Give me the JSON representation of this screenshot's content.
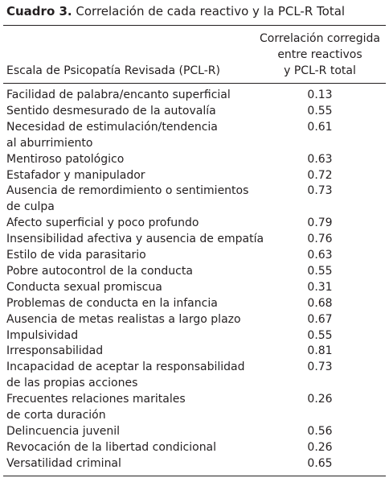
{
  "header": {
    "label": "Cuadro 3.",
    "title": "Correlación de cada reactivo y la PCL-R Total"
  },
  "table": {
    "columns": [
      "Escala de Psicopatía Revisada (PCL-R)",
      [
        "Correlación corregida",
        "entre reactivos",
        "y PCL-R total"
      ]
    ],
    "rows": [
      [
        [
          "Facilidad de palabra/encanto superficial"
        ],
        0.13
      ],
      [
        [
          "Sentido desmesurado de la autovalía"
        ],
        0.55
      ],
      [
        [
          "Necesidad de estimulación/tendencia",
          "al aburrimiento"
        ],
        0.61
      ],
      [
        [
          "Mentiroso patológico"
        ],
        0.63
      ],
      [
        [
          "Estafador y manipulador"
        ],
        0.72
      ],
      [
        [
          "Ausencia de remordimiento o sentimientos",
          "de culpa"
        ],
        0.73
      ],
      [
        [
          "Afecto superficial y poco profundo"
        ],
        0.79
      ],
      [
        [
          "Insensibilidad afectiva y ausencia de empatía"
        ],
        0.76
      ],
      [
        [
          "Estilo de vida parasitario"
        ],
        0.63
      ],
      [
        [
          "Pobre autocontrol de la conducta"
        ],
        0.55
      ],
      [
        [
          "Conducta sexual promiscua"
        ],
        0.31
      ],
      [
        [
          "Problemas de conducta en la infancia"
        ],
        0.68
      ],
      [
        [
          "Ausencia de metas realistas a largo plazo"
        ],
        0.67
      ],
      [
        [
          "Impulsividad"
        ],
        0.55
      ],
      [
        [
          "Irresponsabilidad"
        ],
        0.81
      ],
      [
        [
          "Incapacidad de aceptar la responsabilidad",
          "de las propias acciones"
        ],
        0.73
      ],
      [
        [
          "Frecuentes relaciones maritales",
          "de corta duración"
        ],
        0.26
      ],
      [
        [
          "Delincuencia juvenil"
        ],
        0.56
      ],
      [
        [
          "Revocación de la libertad condicional"
        ],
        0.26
      ],
      [
        [
          "Versatilidad criminal"
        ],
        0.65
      ]
    ]
  }
}
